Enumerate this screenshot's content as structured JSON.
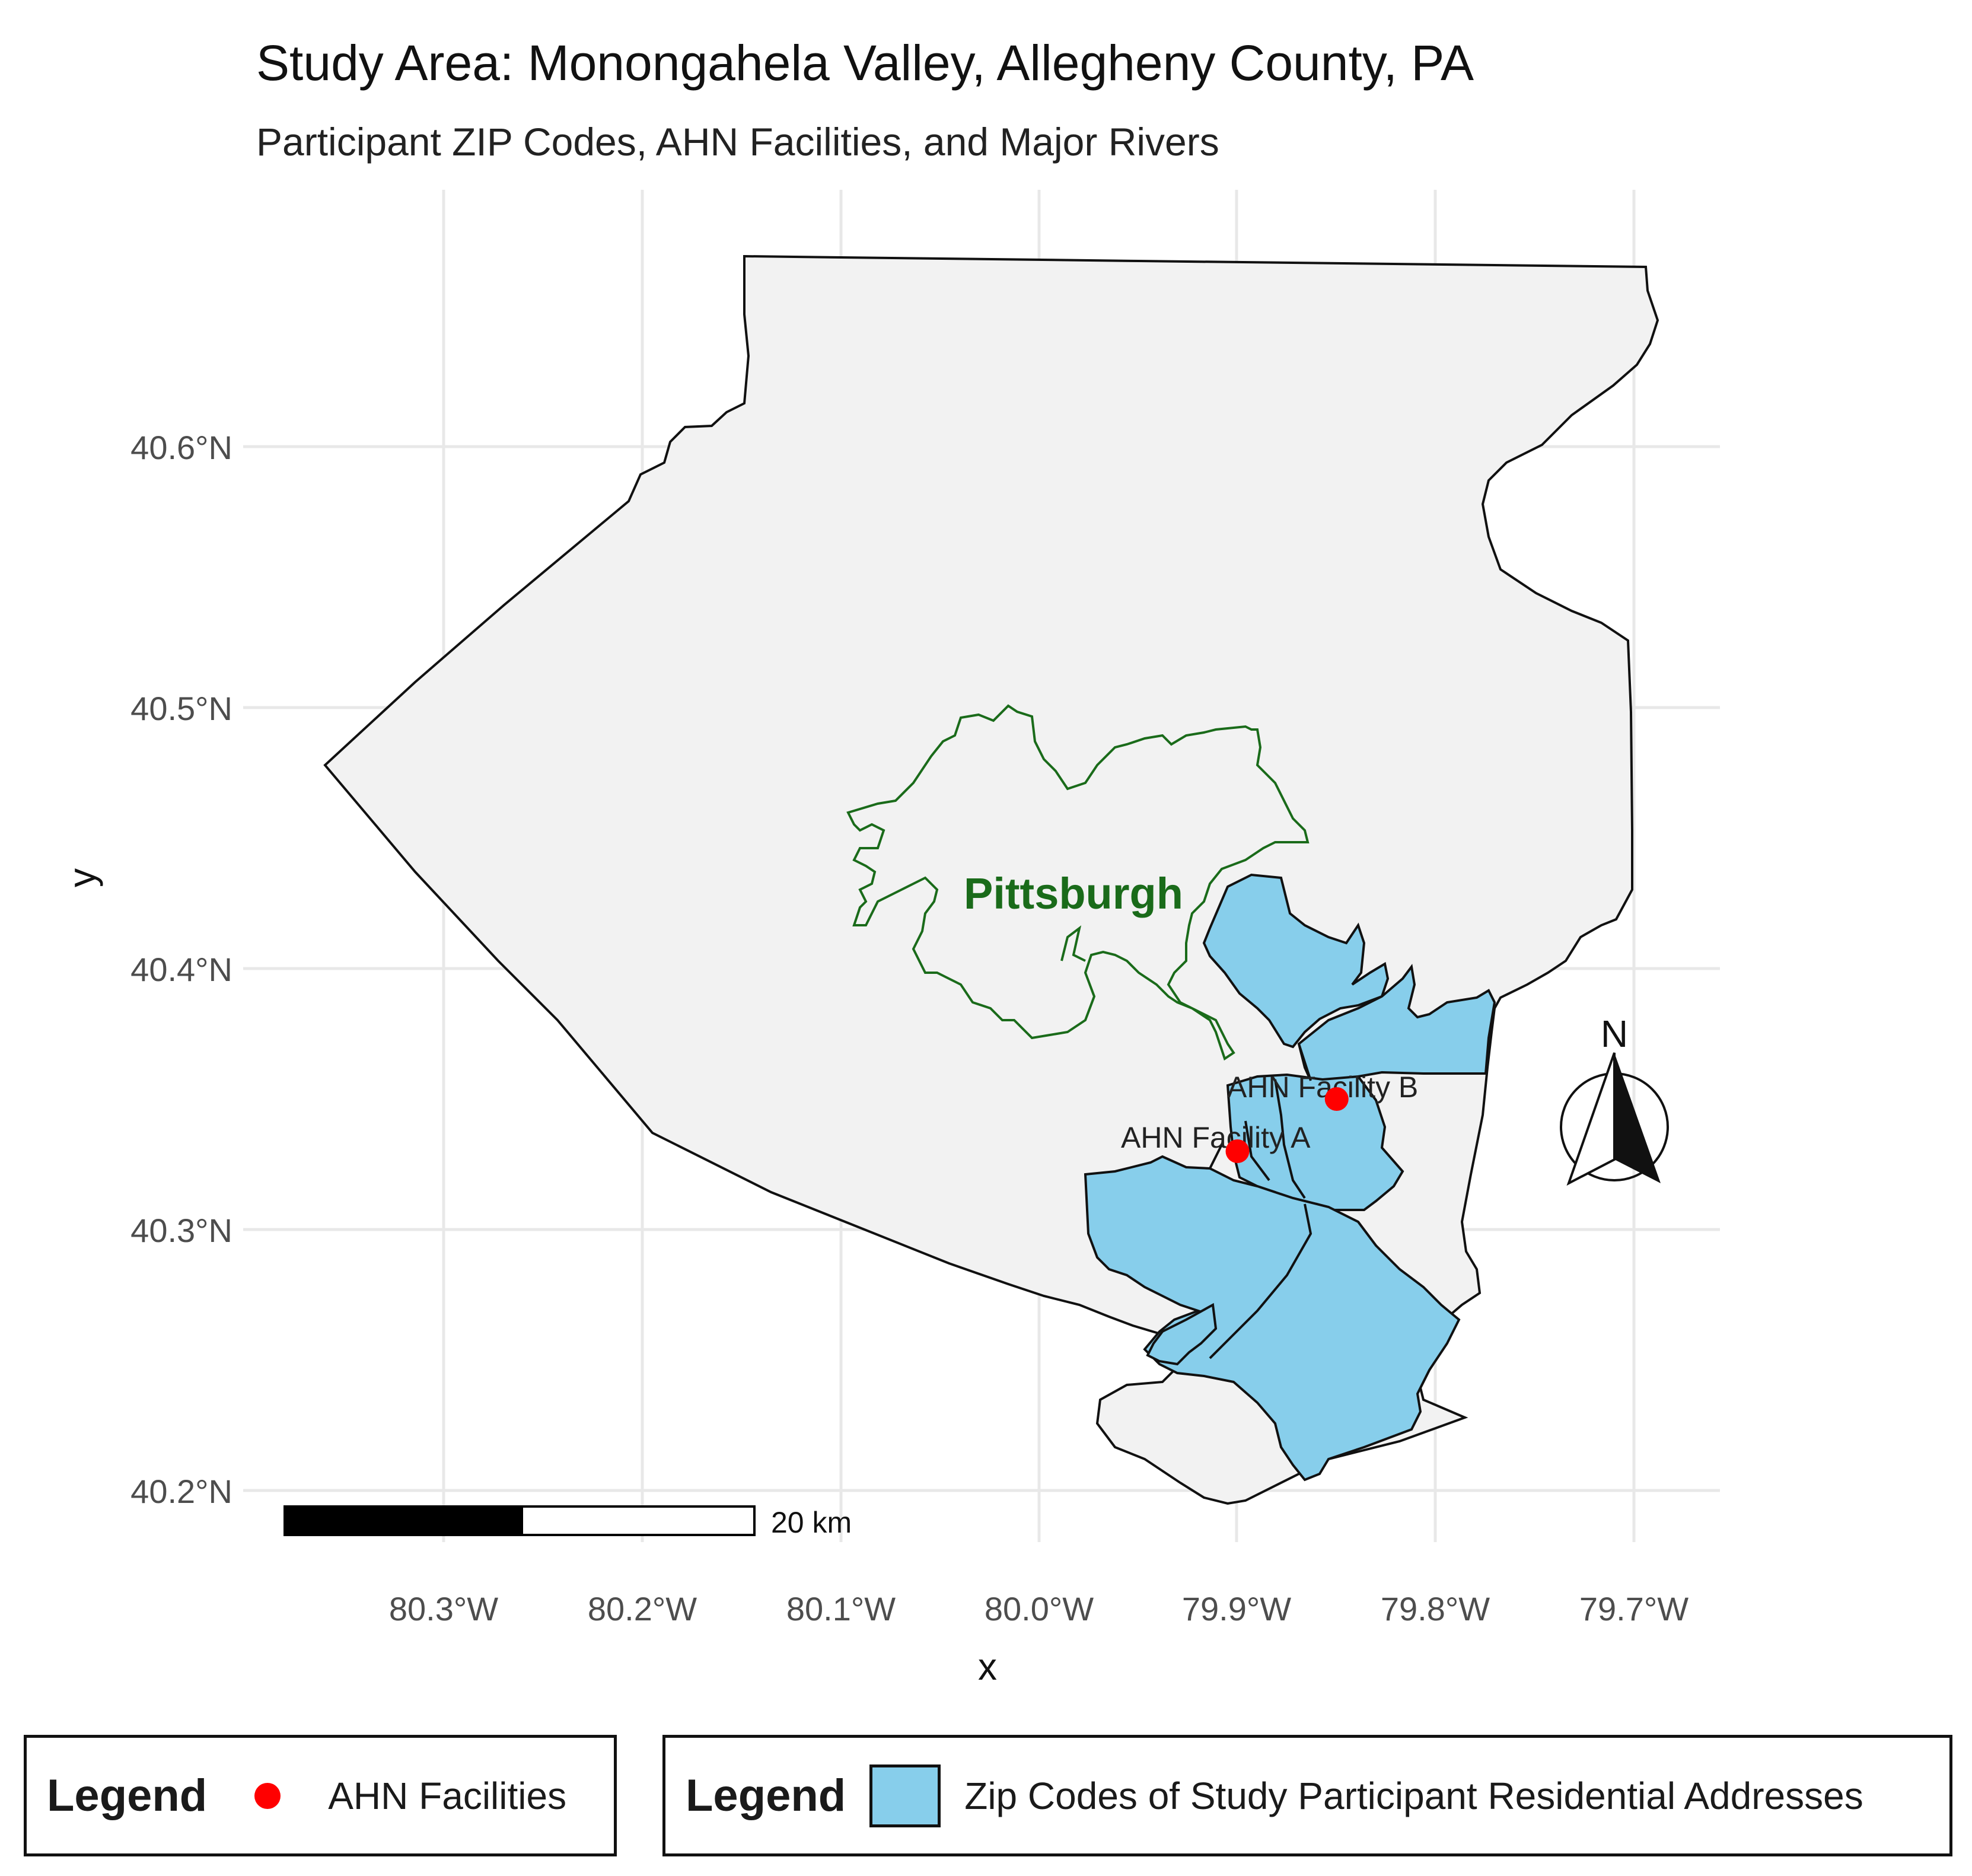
{
  "title": "Study Area: Monongahela Valley, Allegheny County, PA",
  "subtitle": "Participant ZIP Codes, AHN Facilities, and Major Rivers",
  "axes": {
    "xlabel": "x",
    "ylabel": "y",
    "x_ticks": [
      "80.3°W",
      "80.2°W",
      "80.1°W",
      "80.0°W",
      "79.9°W",
      "79.8°W",
      "79.7°W"
    ],
    "y_ticks": [
      "40.6°N",
      "40.5°N",
      "40.4°N",
      "40.3°N",
      "40.2°N"
    ]
  },
  "map": {
    "city_label": "Pittsburgh",
    "facilities": [
      {
        "label": "AHN Facility B",
        "lon": -79.85,
        "lat": 40.35
      },
      {
        "label": "AHN Facility A",
        "lon": -79.9,
        "lat": 40.33
      }
    ],
    "scale_bar_label": "20 km",
    "north_arrow_label": "N",
    "colors": {
      "county_fill": "#f2f2f2",
      "zip_fill": "#87ceeb",
      "city_outline": "#1a6b1a",
      "facility": "#ff0000"
    }
  },
  "legend_facilities": {
    "title": "Legend",
    "label": "AHN Facilities"
  },
  "legend_zips": {
    "title": "Legend",
    "label": "Zip Codes of Study Participant Residential Addresses"
  }
}
